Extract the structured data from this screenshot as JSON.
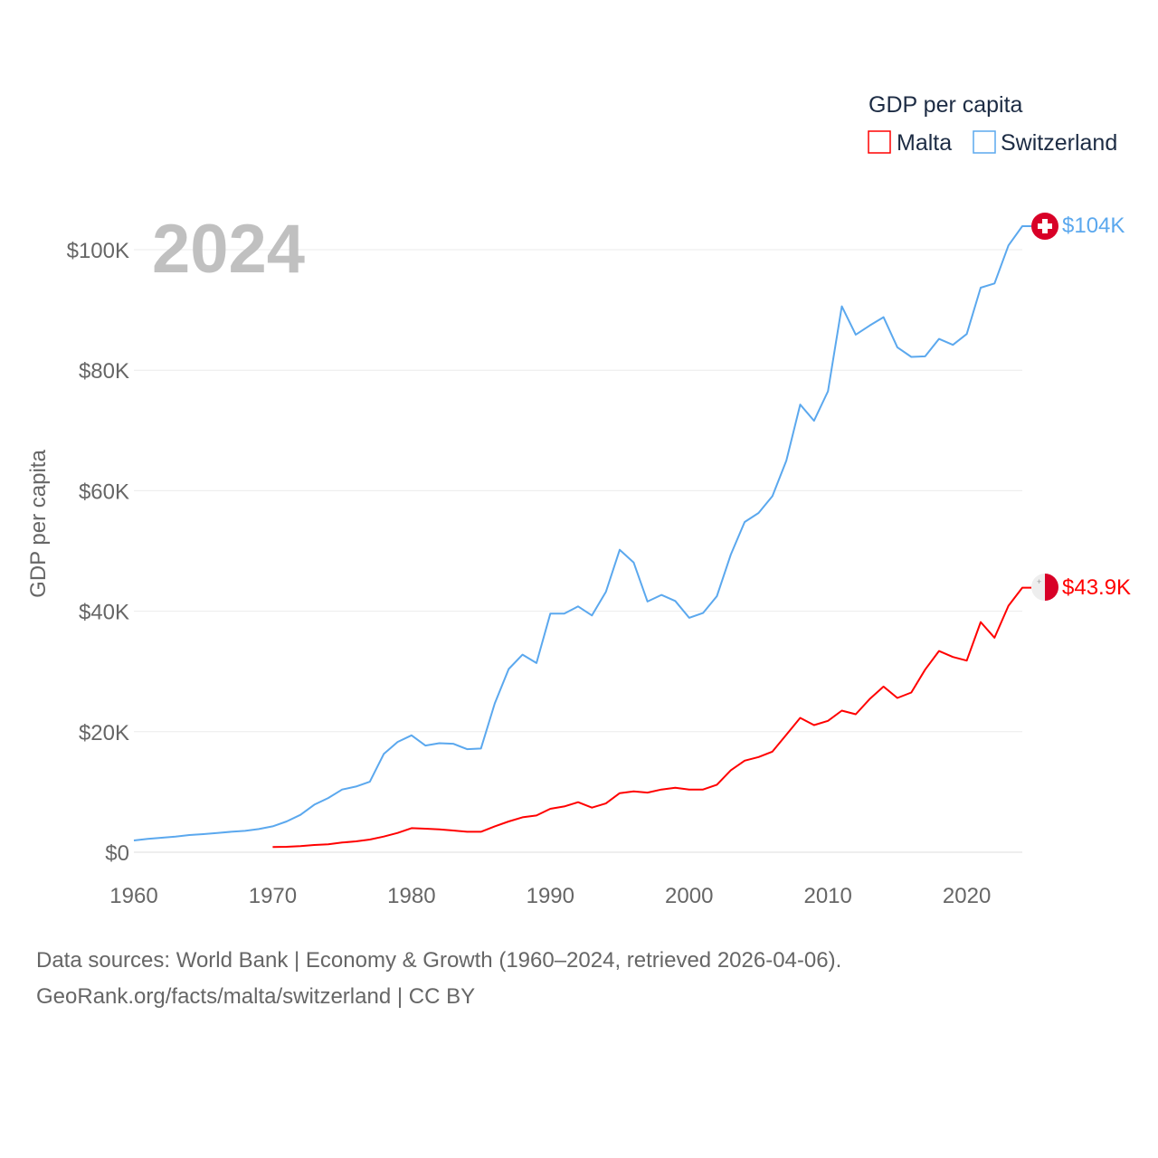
{
  "chart_data": {
    "type": "line",
    "title": "GDP per capita",
    "year_label": "2024",
    "ylabel": "GDP per capita",
    "xlabel": "",
    "xlim": [
      1960,
      2024
    ],
    "ylim": [
      0,
      104
    ],
    "x_ticks": [
      1960,
      1970,
      1980,
      1990,
      2000,
      2010,
      2020
    ],
    "x_tick_labels": [
      "1960",
      "1970",
      "1980",
      "1990",
      "2000",
      "2010",
      "2020"
    ],
    "y_ticks": [
      0,
      20,
      40,
      60,
      80,
      100
    ],
    "y_tick_labels": [
      "$0",
      "$20K",
      "$40K",
      "$60K",
      "$80K",
      "$100K"
    ],
    "grid": true,
    "legend_position": "top-right",
    "series": [
      {
        "name": "Malta",
        "color": "#ff0000",
        "end_label": "$43.9K",
        "flag": "malta-flag",
        "start_year": 1970,
        "values": [
          0.85,
          0.9,
          1.0,
          1.2,
          1.3,
          1.6,
          1.8,
          2.1,
          2.6,
          3.2,
          4.0,
          3.9,
          3.8,
          3.6,
          3.4,
          3.4,
          4.3,
          5.1,
          5.8,
          6.1,
          7.2,
          7.6,
          8.3,
          7.4,
          8.1,
          9.8,
          10.1,
          9.9,
          10.4,
          10.7,
          10.4,
          10.4,
          11.2,
          13.6,
          15.2,
          15.8,
          16.7,
          19.5,
          22.3,
          21.1,
          21.8,
          23.5,
          22.9,
          25.4,
          27.5,
          25.6,
          26.5,
          30.3,
          33.4,
          32.4,
          31.8,
          38.2,
          35.6,
          40.9,
          43.9
        ]
      },
      {
        "name": "Switzerland",
        "color": "#5ba8ee",
        "end_label": "$104K",
        "flag": "switzerland-flag",
        "start_year": 1960,
        "values": [
          1.95,
          2.2,
          2.4,
          2.6,
          2.85,
          3.0,
          3.2,
          3.4,
          3.55,
          3.85,
          4.3,
          5.1,
          6.2,
          7.9,
          9.0,
          10.4,
          10.9,
          11.7,
          16.3,
          18.3,
          19.4,
          17.7,
          18.1,
          18.0,
          17.1,
          17.2,
          24.7,
          30.4,
          32.8,
          31.4,
          39.6,
          39.6,
          40.8,
          39.3,
          43.2,
          50.2,
          48.1,
          41.6,
          42.7,
          41.7,
          38.9,
          39.7,
          42.5,
          49.4,
          54.8,
          56.3,
          59.1,
          65.0,
          74.3,
          71.6,
          76.5,
          90.6,
          85.9,
          87.4,
          88.8,
          83.8,
          82.2,
          82.3,
          85.2,
          84.2,
          86.0,
          93.7,
          94.4,
          100.7,
          103.9
        ]
      }
    ]
  },
  "footer": {
    "line1": "Data sources: World Bank | Economy & Growth (1960–2024, retrieved 2026-04-06).",
    "line2": "GeoRank.org/facts/malta/switzerland | CC BY"
  }
}
